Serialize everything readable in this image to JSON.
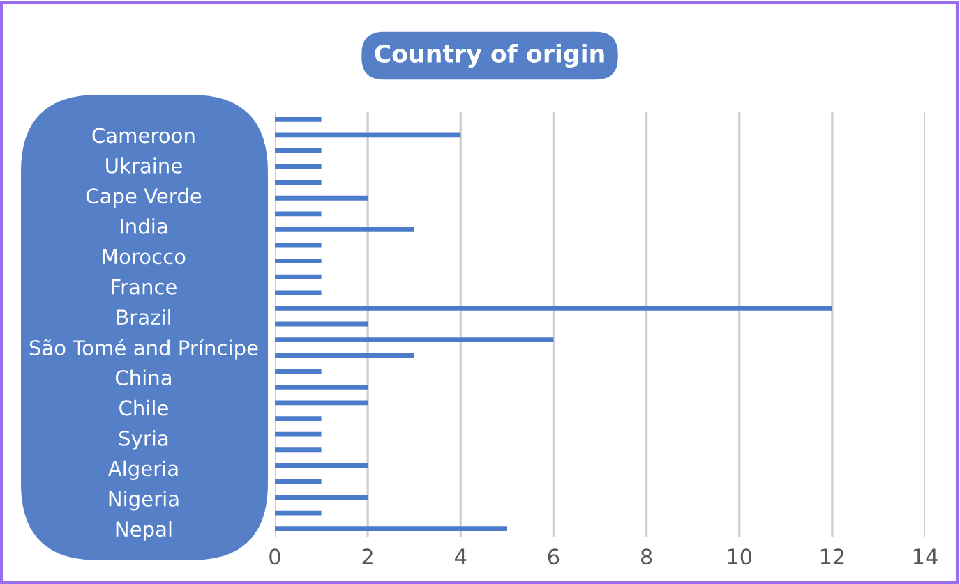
{
  "chart_data": {
    "type": "bar",
    "orientation": "horizontal",
    "title": "Country of origin",
    "categories": [
      null,
      "Cameroon",
      null,
      "Ukraine",
      null,
      "Cape Verde",
      null,
      "India",
      null,
      "Morocco",
      "France",
      null,
      "Brazil",
      null,
      "São Tomé and Príncipe",
      null,
      "China",
      null,
      "Chile",
      null,
      "Syria",
      null,
      "Algeria",
      null,
      "Nigeria",
      null,
      "Nepal"
    ],
    "values": [
      1,
      4,
      1,
      1,
      1,
      2,
      1,
      3,
      1,
      1,
      1,
      1,
      12,
      2,
      6,
      3,
      1,
      2,
      2,
      1,
      1,
      1,
      2,
      1,
      2,
      1,
      5
    ],
    "color": "#4a7cc9",
    "xlim": [
      0,
      14
    ],
    "xticks": [
      0,
      2,
      4,
      6,
      8,
      10,
      12,
      14
    ],
    "grid": "x"
  }
}
